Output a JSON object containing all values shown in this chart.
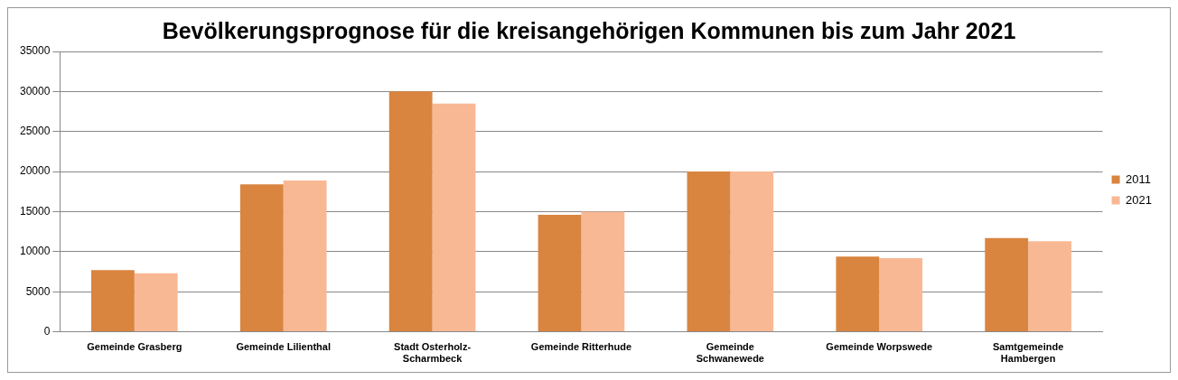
{
  "chart_data": {
    "type": "bar",
    "title": "Bevölkerungsprognose für die kreisangehörigen Kommunen bis zum Jahr 2021",
    "categories": [
      "Gemeinde Grasberg",
      "Gemeinde Lilienthal",
      "Stadt Osterholz-Scharmbeck",
      "Gemeinde Ritterhude",
      "Gemeinde Schwanewede",
      "Gemeinde Worpswede",
      "Samtgemeinde Hambergen"
    ],
    "series": [
      {
        "name": "2011",
        "color": "#d9843f",
        "values": [
          7700,
          18400,
          30000,
          14600,
          20000,
          9400,
          11700
        ]
      },
      {
        "name": "2021",
        "color": "#f8b894",
        "values": [
          7300,
          18900,
          28500,
          15000,
          20000,
          9200,
          11300
        ]
      }
    ],
    "ylim": [
      0,
      35000
    ],
    "yticks": [
      0,
      5000,
      10000,
      15000,
      20000,
      25000,
      30000,
      35000
    ],
    "grid": "y",
    "legend": "right"
  }
}
